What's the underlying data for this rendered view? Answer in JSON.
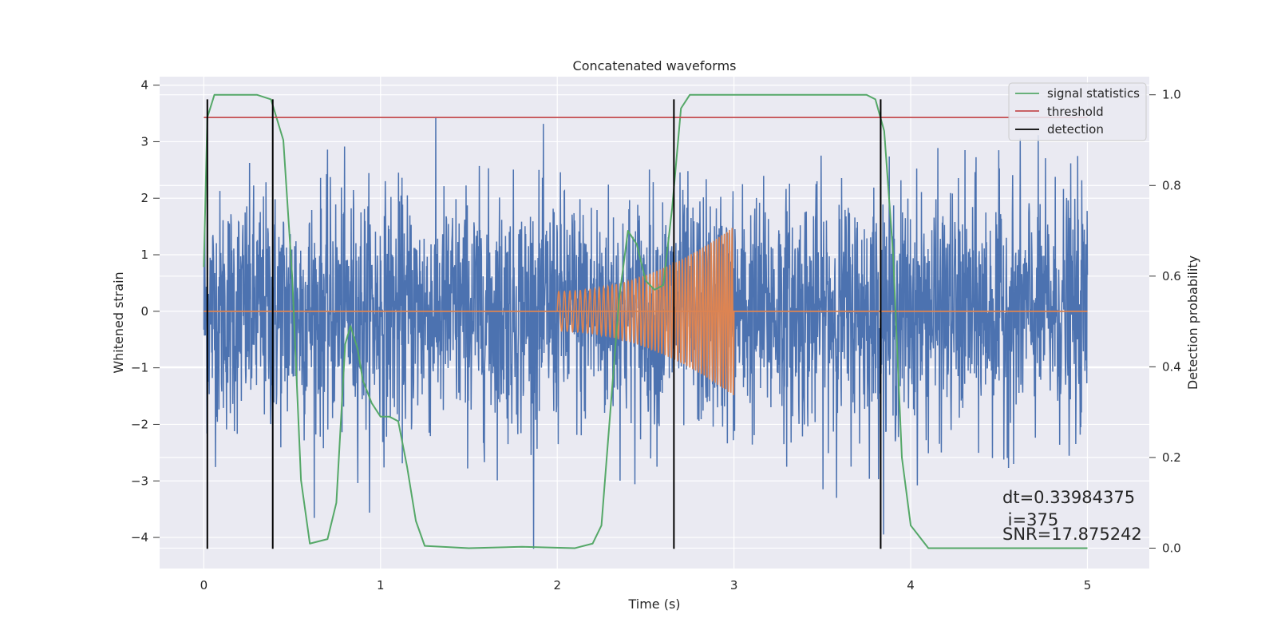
{
  "chart_data": {
    "type": "line",
    "title": "Concatenated waveforms",
    "xlabel": "Time (s)",
    "ylabel": "Whitened strain",
    "y2label": "Detection probability",
    "xlim": [
      -0.25,
      5.35
    ],
    "ylim": [
      -4.55,
      4.15
    ],
    "y2lim": [
      -0.045,
      1.04
    ],
    "xticks": [
      0,
      1,
      2,
      3,
      4,
      5
    ],
    "yticks": [
      -4,
      -3,
      -2,
      -1,
      0,
      1,
      2,
      3,
      4
    ],
    "y2ticks": [
      0.0,
      0.2,
      0.4,
      0.6,
      0.8,
      1.0
    ],
    "xtick_labels": [
      "0",
      "1",
      "2",
      "3",
      "4",
      "5"
    ],
    "ytick_labels": [
      "−4",
      "−3",
      "−2",
      "−1",
      "0",
      "1",
      "2",
      "3",
      "4"
    ],
    "y2tick_labels": [
      "0.0",
      "0.2",
      "0.4",
      "0.6",
      "0.8",
      "1.0"
    ],
    "grid": true,
    "legend_position": "top-right",
    "colors": {
      "strain": "#4c72b0",
      "template": "#dd8452",
      "signal_statistics": "#55a868",
      "threshold": "#c44e52",
      "detection": "#000000",
      "axes_background": "#eaeaf2"
    },
    "series": [
      {
        "name": "",
        "role": "strain",
        "x_range": [
          0,
          5
        ],
        "amplitude_envelope": [
          -4.2,
          3.5
        ]
      },
      {
        "name": "",
        "role": "template",
        "x_range": [
          2.0,
          3.0
        ],
        "amplitude_start": 0.35,
        "amplitude_end": 1.5
      },
      {
        "name": "signal statistics",
        "role": "probability",
        "x": [
          0.0,
          0.02,
          0.06,
          0.1,
          0.3,
          0.38,
          0.45,
          0.5,
          0.55,
          0.6,
          0.7,
          0.75,
          0.8,
          0.83,
          0.87,
          0.9,
          0.95,
          1.0,
          1.05,
          1.1,
          1.15,
          1.2,
          1.25,
          1.5,
          1.8,
          2.1,
          2.2,
          2.25,
          2.3,
          2.35,
          2.4,
          2.45,
          2.5,
          2.55,
          2.6,
          2.65,
          2.7,
          2.75,
          3.5,
          3.75,
          3.8,
          3.85,
          3.9,
          3.95,
          4.0,
          4.1,
          5.0
        ],
        "y": [
          0.62,
          0.95,
          1.0,
          1.0,
          1.0,
          0.99,
          0.9,
          0.6,
          0.15,
          0.01,
          0.02,
          0.1,
          0.45,
          0.49,
          0.44,
          0.37,
          0.32,
          0.29,
          0.29,
          0.28,
          0.18,
          0.06,
          0.005,
          0.0,
          0.003,
          0.0,
          0.01,
          0.05,
          0.3,
          0.55,
          0.7,
          0.67,
          0.59,
          0.57,
          0.58,
          0.75,
          0.97,
          1.0,
          1.0,
          1.0,
          0.99,
          0.92,
          0.65,
          0.2,
          0.05,
          0.0,
          0.0
        ]
      },
      {
        "name": "threshold",
        "role": "threshold",
        "value": 0.95,
        "x_range": [
          0,
          5
        ]
      },
      {
        "name": "detection",
        "role": "detection",
        "x": [
          0.02,
          0.39,
          2.66,
          3.83
        ],
        "y_range": [
          -4.2,
          3.75
        ]
      }
    ],
    "annotations": {
      "dt": "dt=0.33984375",
      "i": " i=375",
      "snr": "SNR=17.875242"
    }
  }
}
